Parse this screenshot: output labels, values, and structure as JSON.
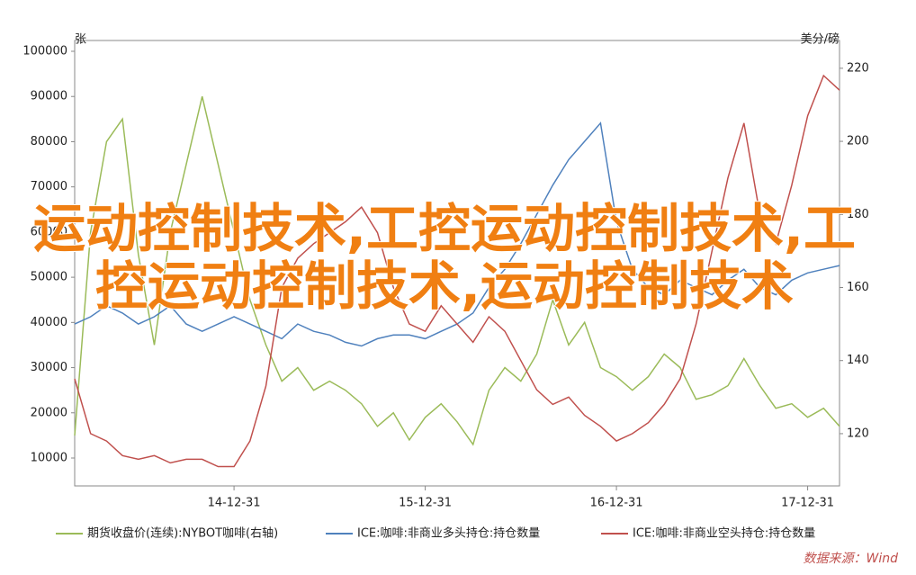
{
  "chart_data": {
    "type": "line",
    "y_label": "张",
    "y2_label": "美分/磅",
    "categories": [
      null,
      null,
      null,
      null,
      null,
      null,
      null,
      null,
      null,
      null,
      "14-12-31",
      null,
      null,
      null,
      null,
      null,
      null,
      null,
      null,
      null,
      null,
      null,
      "15-12-31",
      null,
      null,
      null,
      null,
      null,
      null,
      null,
      null,
      null,
      null,
      null,
      "16-12-31",
      null,
      null,
      null,
      null,
      null,
      null,
      null,
      null,
      null,
      null,
      null,
      "17-12-31",
      null,
      null
    ],
    "ylim": [
      3825,
      102390
    ],
    "yticks": [
      10000,
      20000,
      30000,
      40000,
      50000,
      60000,
      70000,
      80000,
      90000,
      100000
    ],
    "y2lim": [
      105.7,
      227.6
    ],
    "y2ticks": [
      120,
      140,
      160,
      180,
      200,
      220
    ],
    "series": [
      {
        "name": "期货收盘价(连续):NYBOT咖啡(右轴)",
        "color": "#9bbb59",
        "values": [
          15000,
          60000,
          80000,
          85000,
          55000,
          35000,
          60000,
          75000,
          90000,
          75000,
          60000,
          45000,
          35000,
          27000,
          30000,
          25000,
          27000,
          25000,
          22000,
          17000,
          20000,
          14000,
          19000,
          22000,
          18000,
          13000,
          25000,
          30000,
          27000,
          33000,
          45000,
          35000,
          40000,
          30000,
          28000,
          25000,
          28000,
          33000,
          30000,
          23000,
          24000,
          26000,
          32000,
          26000,
          21000,
          22000,
          19000,
          21000,
          17000
        ]
      },
      {
        "name": "ICE:咖啡:非商业多头持仓:持仓数量",
        "color": "#4f81bd",
        "axis": "y2",
        "values": [
          150,
          152,
          155,
          153,
          150,
          152,
          155,
          150,
          148,
          150,
          152,
          150,
          148,
          146,
          150,
          148,
          147,
          145,
          144,
          146,
          147,
          147,
          146,
          148,
          150,
          153,
          160,
          165,
          172,
          180,
          188,
          195,
          200,
          205,
          178,
          165,
          160,
          158,
          162,
          160,
          158,
          162,
          165,
          160,
          158,
          162,
          164,
          165,
          166
        ]
      },
      {
        "name": "ICE:咖啡:非商业空头持仓:持仓数量",
        "color": "#c0504d",
        "axis": "y2",
        "values": [
          135,
          120,
          118,
          114,
          113,
          114,
          112,
          113,
          113,
          111,
          111,
          118,
          133,
          160,
          168,
          172,
          175,
          178,
          182,
          175,
          160,
          150,
          148,
          155,
          150,
          145,
          152,
          148,
          140,
          132,
          128,
          130,
          125,
          122,
          118,
          120,
          123,
          128,
          135,
          150,
          170,
          190,
          205,
          180,
          172,
          188,
          207,
          218,
          214
        ]
      }
    ],
    "overlay_text": "运动控制技术,工控运动控制技术,工控运动控制技术,运动控制技术",
    "source": "数据来源：Wind"
  }
}
